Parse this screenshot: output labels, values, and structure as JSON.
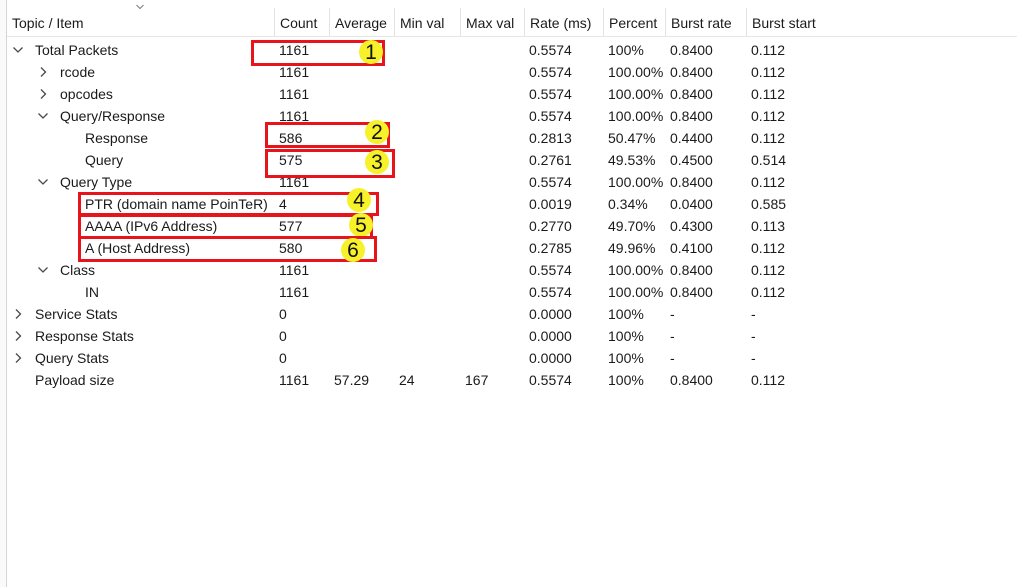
{
  "columns": [
    "Topic / Item",
    "Count",
    "Average",
    "Min val",
    "Max val",
    "Rate (ms)",
    "Percent",
    "Burst rate",
    "Burst start"
  ],
  "rows": [
    {
      "level": 0,
      "toggle": "expanded",
      "topic": "Total Packets",
      "count": "1161",
      "average": "",
      "min": "",
      "max": "",
      "rate": "0.5574",
      "percent": "100%",
      "burst_rate": "0.8400",
      "burst_start": "0.112"
    },
    {
      "level": 1,
      "toggle": "collapsed",
      "topic": "rcode",
      "count": "1161",
      "average": "",
      "min": "",
      "max": "",
      "rate": "0.5574",
      "percent": "100.00%",
      "burst_rate": "0.8400",
      "burst_start": "0.112"
    },
    {
      "level": 1,
      "toggle": "collapsed",
      "topic": "opcodes",
      "count": "1161",
      "average": "",
      "min": "",
      "max": "",
      "rate": "0.5574",
      "percent": "100.00%",
      "burst_rate": "0.8400",
      "burst_start": "0.112"
    },
    {
      "level": 1,
      "toggle": "expanded",
      "topic": "Query/Response",
      "count": "1161",
      "average": "",
      "min": "",
      "max": "",
      "rate": "0.5574",
      "percent": "100.00%",
      "burst_rate": "0.8400",
      "burst_start": "0.112"
    },
    {
      "level": 2,
      "toggle": "none",
      "topic": "Response",
      "count": "586",
      "average": "",
      "min": "",
      "max": "",
      "rate": "0.2813",
      "percent": "50.47%",
      "burst_rate": "0.4400",
      "burst_start": "0.112"
    },
    {
      "level": 2,
      "toggle": "none",
      "topic": "Query",
      "count": "575",
      "average": "",
      "min": "",
      "max": "",
      "rate": "0.2761",
      "percent": "49.53%",
      "burst_rate": "0.4500",
      "burst_start": "0.514"
    },
    {
      "level": 1,
      "toggle": "expanded",
      "topic": "Query Type",
      "count": "1161",
      "average": "",
      "min": "",
      "max": "",
      "rate": "0.5574",
      "percent": "100.00%",
      "burst_rate": "0.8400",
      "burst_start": "0.112"
    },
    {
      "level": 2,
      "toggle": "none",
      "topic": "PTR (domain name PoinTeR)",
      "count": "4",
      "average": "",
      "min": "",
      "max": "",
      "rate": "0.0019",
      "percent": "0.34%",
      "burst_rate": "0.0400",
      "burst_start": "0.585"
    },
    {
      "level": 2,
      "toggle": "none",
      "topic": "AAAA (IPv6 Address)",
      "count": "577",
      "average": "",
      "min": "",
      "max": "",
      "rate": "0.2770",
      "percent": "49.70%",
      "burst_rate": "0.4300",
      "burst_start": "0.113"
    },
    {
      "level": 2,
      "toggle": "none",
      "topic": "A (Host Address)",
      "count": "580",
      "average": "",
      "min": "",
      "max": "",
      "rate": "0.2785",
      "percent": "49.96%",
      "burst_rate": "0.4100",
      "burst_start": "0.112"
    },
    {
      "level": 1,
      "toggle": "expanded",
      "topic": "Class",
      "count": "1161",
      "average": "",
      "min": "",
      "max": "",
      "rate": "0.5574",
      "percent": "100.00%",
      "burst_rate": "0.8400",
      "burst_start": "0.112"
    },
    {
      "level": 2,
      "toggle": "none",
      "topic": "IN",
      "count": "1161",
      "average": "",
      "min": "",
      "max": "",
      "rate": "0.5574",
      "percent": "100.00%",
      "burst_rate": "0.8400",
      "burst_start": "0.112"
    },
    {
      "level": 0,
      "toggle": "collapsed",
      "topic": "Service Stats",
      "count": "0",
      "average": "",
      "min": "",
      "max": "",
      "rate": "0.0000",
      "percent": "100%",
      "burst_rate": "-",
      "burst_start": "-"
    },
    {
      "level": 0,
      "toggle": "collapsed",
      "topic": "Response Stats",
      "count": "0",
      "average": "",
      "min": "",
      "max": "",
      "rate": "0.0000",
      "percent": "100%",
      "burst_rate": "-",
      "burst_start": "-"
    },
    {
      "level": 0,
      "toggle": "collapsed",
      "topic": "Query Stats",
      "count": "0",
      "average": "",
      "min": "",
      "max": "",
      "rate": "0.0000",
      "percent": "100%",
      "burst_rate": "-",
      "burst_start": "-"
    },
    {
      "level": 0,
      "toggle": "none",
      "topic": "Payload size",
      "count": "1161",
      "average": "57.29",
      "min": "24",
      "max": "167",
      "rate": "0.5574",
      "percent": "100%",
      "burst_rate": "0.8400",
      "burst_start": "0.112"
    }
  ],
  "annotations": [
    {
      "number": "1",
      "row": 0
    },
    {
      "number": "2",
      "row": 4
    },
    {
      "number": "3",
      "row": 5
    },
    {
      "number": "4",
      "row": 7
    },
    {
      "number": "5",
      "row": 8
    },
    {
      "number": "6",
      "row": 9
    }
  ],
  "colors": {
    "highlight_border": "#e8141b",
    "badge_fill": "#f7f12a"
  }
}
